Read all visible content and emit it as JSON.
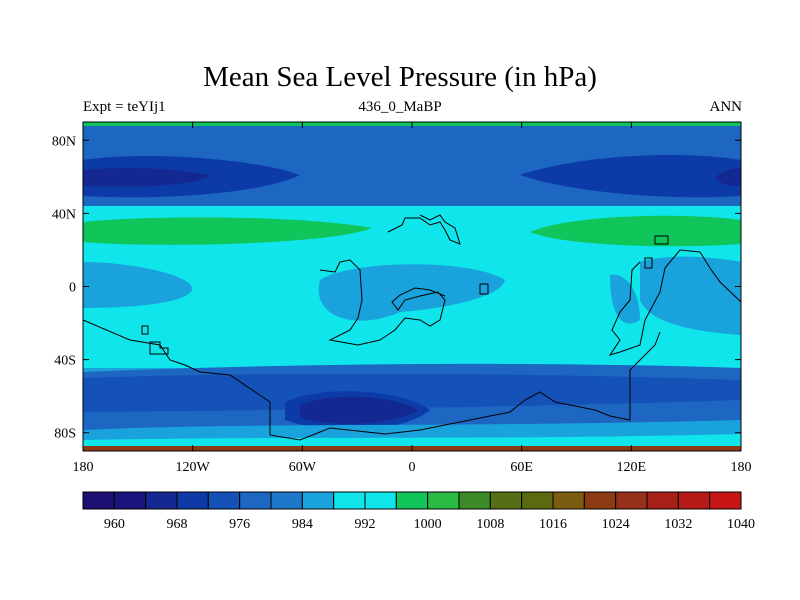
{
  "chart_data": {
    "type": "map",
    "title": "Mean Sea Level Pressure (in hPa)",
    "left_label": "Expt = teYIj1",
    "center_label": "436_0_MaBP",
    "right_label": "ANN",
    "x_range": [
      -180,
      180
    ],
    "y_range": [
      -90,
      90
    ],
    "x_ticks": [
      {
        "value": -180,
        "label": "180"
      },
      {
        "value": -120,
        "label": "120W"
      },
      {
        "value": -60,
        "label": "60W"
      },
      {
        "value": 0,
        "label": "0"
      },
      {
        "value": 60,
        "label": "60E"
      },
      {
        "value": 120,
        "label": "120E"
      },
      {
        "value": 180,
        "label": "180"
      }
    ],
    "y_ticks": [
      {
        "value": 80,
        "label": "80N"
      },
      {
        "value": 40,
        "label": "40N"
      },
      {
        "value": 0,
        "label": "0"
      },
      {
        "value": -40,
        "label": "40S"
      },
      {
        "value": -80,
        "label": "80S"
      }
    ],
    "colorbar": {
      "colors": [
        "#1c1073",
        "#1b147f",
        "#142891",
        "#0c3ba8",
        "#1552b8",
        "#1d66c2",
        "#1e77c9",
        "#1aa2dc",
        "#0fe5ea",
        "#0fe5ea",
        "#10c55a",
        "#2bba44",
        "#3d8a28",
        "#566f14",
        "#5b6a0e",
        "#7c5c10",
        "#8c3a12",
        "#96301a",
        "#a62018",
        "#b61a16",
        "#c81616"
      ],
      "labels": [
        "960",
        "968",
        "976",
        "984",
        "992",
        "1000",
        "1008",
        "1016",
        "1024",
        "1032",
        "1040"
      ]
    }
  }
}
